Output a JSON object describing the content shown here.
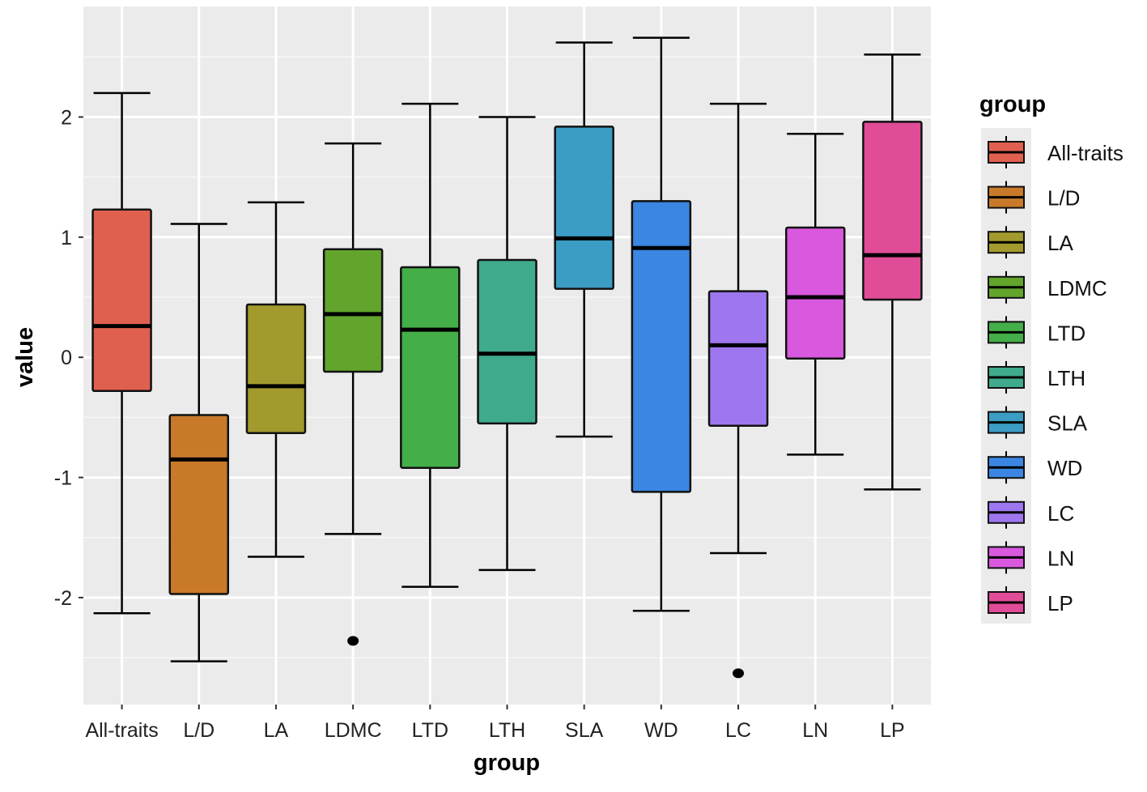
{
  "chart_data": {
    "type": "boxplot",
    "xlabel": "group",
    "ylabel": "value",
    "ylim": [
      -2.89,
      2.92
    ],
    "yticks": [
      -2,
      -1,
      0,
      1,
      2
    ],
    "ytick_labels": [
      "-2",
      "-1",
      "0",
      "1",
      "2"
    ],
    "grid": true,
    "legend": {
      "title": "group",
      "placement": "right"
    },
    "categories": [
      "All-traits",
      "L/D",
      "LA",
      "LDMC",
      "LTD",
      "LTH",
      "SLA",
      "WD",
      "LC",
      "LN",
      "LP"
    ],
    "colors": [
      "#E0604F",
      "#C87A2A",
      "#A39A2E",
      "#62A42C",
      "#44AE48",
      "#3FAA8C",
      "#3B9CC4",
      "#3A86E2",
      "#9E77EE",
      "#D858DE",
      "#E04C98"
    ],
    "series": [
      {
        "name": "All-traits",
        "min": -2.13,
        "q1": -0.28,
        "median": 0.26,
        "q3": 1.23,
        "max": 2.2,
        "outliers": []
      },
      {
        "name": "L/D",
        "min": -2.53,
        "q1": -1.97,
        "median": -0.85,
        "q3": -0.48,
        "max": 1.11,
        "outliers": []
      },
      {
        "name": "LA",
        "min": -1.66,
        "q1": -0.63,
        "median": -0.24,
        "q3": 0.44,
        "max": 1.29,
        "outliers": []
      },
      {
        "name": "LDMC",
        "min": -1.47,
        "q1": -0.12,
        "median": 0.36,
        "q3": 0.9,
        "max": 1.78,
        "outliers": [
          -2.36
        ]
      },
      {
        "name": "LTD",
        "min": -1.91,
        "q1": -0.92,
        "median": 0.23,
        "q3": 0.75,
        "max": 2.11,
        "outliers": []
      },
      {
        "name": "LTH",
        "min": -1.77,
        "q1": -0.55,
        "median": 0.03,
        "q3": 0.81,
        "max": 2.0,
        "outliers": []
      },
      {
        "name": "SLA",
        "min": -0.66,
        "q1": 0.57,
        "median": 0.99,
        "q3": 1.92,
        "max": 2.62,
        "outliers": []
      },
      {
        "name": "WD",
        "min": -2.11,
        "q1": -1.12,
        "median": 0.91,
        "q3": 1.3,
        "max": 2.66,
        "outliers": []
      },
      {
        "name": "LC",
        "min": -1.63,
        "q1": -0.57,
        "median": 0.1,
        "q3": 0.55,
        "max": 2.11,
        "outliers": [
          -2.63
        ]
      },
      {
        "name": "LN",
        "min": -0.81,
        "q1": -0.01,
        "median": 0.5,
        "q3": 1.08,
        "max": 1.86,
        "outliers": []
      },
      {
        "name": "LP",
        "min": -1.1,
        "q1": 0.48,
        "median": 0.85,
        "q3": 1.96,
        "max": 2.52,
        "outliers": []
      }
    ]
  }
}
